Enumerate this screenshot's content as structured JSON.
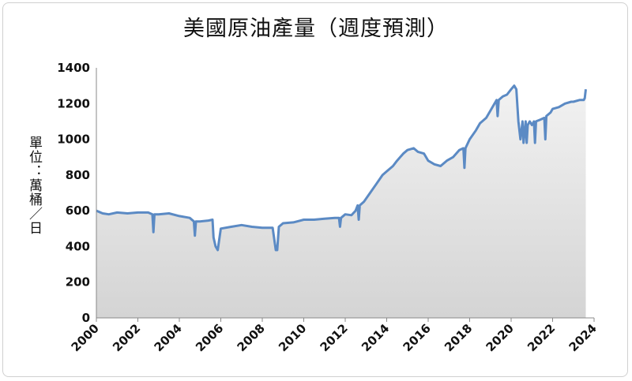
{
  "chart_data": {
    "type": "area",
    "title": "美國原油產量（週度預測）",
    "xlabel": "",
    "ylabel": "單位：萬桶／日",
    "xlim": [
      2000,
      2024
    ],
    "ylim": [
      0,
      1400
    ],
    "y_ticks": [
      "0",
      "200",
      "400",
      "600",
      "800",
      "1000",
      "1200",
      "1400"
    ],
    "x_ticks": [
      "2000",
      "2002",
      "2004",
      "2006",
      "2008",
      "2010",
      "2012",
      "2014",
      "2016",
      "2018",
      "2020",
      "2022",
      "2024"
    ],
    "grid": false,
    "legend": "none",
    "line_color": "#5b8ac4",
    "fill_color": "#dcdcdc",
    "x": [
      2000.0,
      2000.3,
      2000.6,
      2001.0,
      2001.5,
      2002.0,
      2002.5,
      2002.7,
      2002.75,
      2002.8,
      2003.0,
      2003.5,
      2004.0,
      2004.5,
      2004.7,
      2004.75,
      2004.8,
      2005.0,
      2005.4,
      2005.6,
      2005.65,
      2005.75,
      2005.85,
      2006.0,
      2006.5,
      2007.0,
      2007.5,
      2008.0,
      2008.5,
      2008.65,
      2008.72,
      2008.8,
      2009.0,
      2009.5,
      2010.0,
      2010.5,
      2011.0,
      2011.5,
      2011.7,
      2011.75,
      2011.8,
      2012.0,
      2012.3,
      2012.5,
      2012.6,
      2012.65,
      2012.7,
      2012.9,
      2013.2,
      2013.5,
      2013.8,
      2014.0,
      2014.3,
      2014.5,
      2014.8,
      2015.0,
      2015.3,
      2015.5,
      2015.8,
      2016.0,
      2016.3,
      2016.6,
      2016.9,
      2017.2,
      2017.5,
      2017.7,
      2017.75,
      2017.8,
      2018.0,
      2018.3,
      2018.5,
      2018.8,
      2019.0,
      2019.2,
      2019.3,
      2019.35,
      2019.4,
      2019.6,
      2019.8,
      2020.0,
      2020.15,
      2020.25,
      2020.35,
      2020.45,
      2020.55,
      2020.6,
      2020.7,
      2020.75,
      2020.8,
      2020.9,
      2021.0,
      2021.1,
      2021.15,
      2021.2,
      2021.4,
      2021.6,
      2021.65,
      2021.7,
      2021.9,
      2022.0,
      2022.3,
      2022.6,
      2022.9,
      2023.0,
      2023.3,
      2023.5,
      2023.55,
      2023.6
    ],
    "values": [
      600,
      585,
      580,
      590,
      585,
      590,
      590,
      580,
      480,
      580,
      580,
      585,
      570,
      560,
      540,
      460,
      540,
      540,
      545,
      550,
      450,
      400,
      380,
      500,
      510,
      520,
      510,
      505,
      505,
      380,
      380,
      510,
      530,
      535,
      550,
      550,
      555,
      560,
      560,
      510,
      560,
      580,
      575,
      600,
      630,
      550,
      630,
      650,
      700,
      750,
      800,
      820,
      850,
      880,
      920,
      940,
      950,
      930,
      920,
      880,
      860,
      850,
      880,
      900,
      940,
      950,
      840,
      950,
      1000,
      1050,
      1090,
      1120,
      1160,
      1200,
      1220,
      1130,
      1220,
      1240,
      1250,
      1280,
      1300,
      1280,
      1100,
      1000,
      1100,
      980,
      1100,
      980,
      1080,
      1100,
      1080,
      1100,
      980,
      1100,
      1110,
      1120,
      1000,
      1130,
      1150,
      1170,
      1180,
      1200,
      1210,
      1210,
      1220,
      1220,
      1230,
      1280
    ]
  }
}
